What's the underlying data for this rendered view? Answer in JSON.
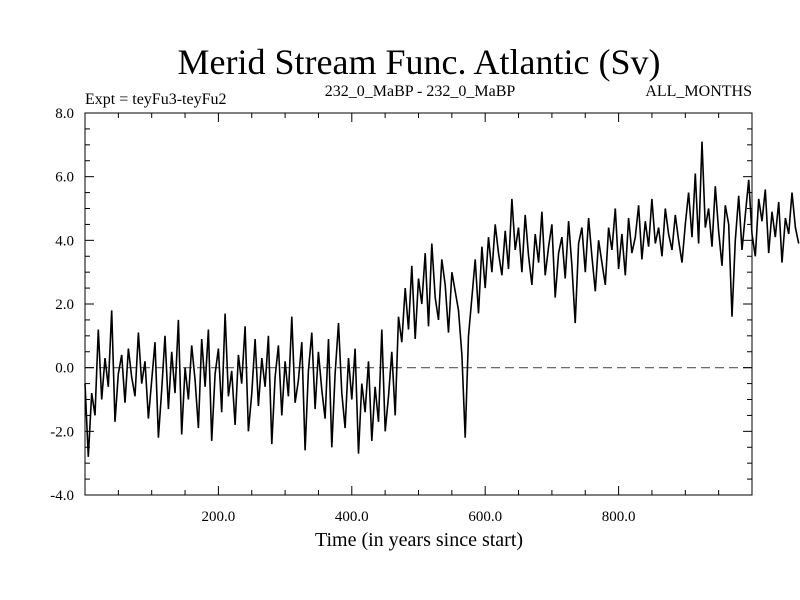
{
  "chart_data": {
    "type": "line",
    "title": "Merid Stream Func. Atlantic (Sv)",
    "subtitle_left": "Expt = teyFu3-teyFu2",
    "subtitle_center": "232_0_MaBP - 232_0_MaBP",
    "subtitle_right": "ALL_MONTHS",
    "xlabel": "Time (in years since start)",
    "ylabel": "",
    "xlim": [
      0,
      1000
    ],
    "ylim": [
      -4.0,
      8.0
    ],
    "x_ticks": [
      200,
      400,
      600,
      800
    ],
    "x_tick_labels": [
      "200.0",
      "400.0",
      "600.0",
      "800.0"
    ],
    "y_ticks": [
      -4,
      -2,
      0,
      2,
      4,
      6,
      8
    ],
    "y_tick_labels": [
      "-4.0",
      "-2.0",
      "0.0",
      "2.0",
      "4.0",
      "6.0",
      "8.0"
    ],
    "reference_line": {
      "y": 0,
      "style": "dashed"
    },
    "series": [
      {
        "name": "teyFu3-teyFu2",
        "x_start": 0,
        "x_step": 5,
        "values": [
          -0.5,
          -2.8,
          -0.8,
          -1.5,
          1.2,
          -1.0,
          0.3,
          -0.6,
          1.8,
          -1.7,
          -0.2,
          0.4,
          -1.1,
          0.6,
          -0.3,
          -0.9,
          1.1,
          -0.5,
          0.2,
          -1.6,
          -0.4,
          0.8,
          -2.2,
          -0.7,
          1.0,
          -1.3,
          0.5,
          -0.8,
          1.5,
          -2.1,
          0.0,
          -1.0,
          0.7,
          -0.4,
          -1.9,
          0.9,
          -0.6,
          1.2,
          -2.3,
          -0.2,
          0.6,
          -1.4,
          1.7,
          -0.9,
          -0.1,
          -1.8,
          0.4,
          -0.5,
          1.3,
          -2.0,
          -0.8,
          0.9,
          -1.2,
          0.3,
          -0.6,
          1.0,
          -2.4,
          -0.3,
          0.7,
          -1.5,
          0.2,
          -0.9,
          1.6,
          -1.1,
          -0.4,
          0.8,
          -2.6,
          -0.1,
          1.1,
          -1.3,
          0.5,
          -0.7,
          -1.6,
          0.9,
          -2.5,
          -0.2,
          1.4,
          -0.8,
          -1.9,
          0.3,
          -1.0,
          0.6,
          -2.7,
          -0.5,
          -1.4,
          0.2,
          -2.3,
          -0.6,
          -1.7,
          1.2,
          -2.0,
          -0.9,
          0.5,
          -1.5,
          1.6,
          0.8,
          2.5,
          1.2,
          3.2,
          0.9,
          2.8,
          2.0,
          3.6,
          1.3,
          3.9,
          2.2,
          1.5,
          3.4,
          2.6,
          1.1,
          3.0,
          2.4,
          1.8,
          0.4,
          -2.2,
          1.0,
          2.2,
          3.4,
          1.7,
          3.8,
          2.5,
          4.1,
          3.0,
          4.5,
          3.6,
          2.9,
          4.3,
          3.1,
          5.3,
          3.7,
          4.4,
          3.0,
          4.8,
          3.5,
          2.6,
          4.2,
          3.3,
          4.9,
          2.9,
          3.8,
          4.5,
          2.2,
          3.6,
          4.1,
          2.8,
          4.6,
          3.2,
          1.4,
          3.9,
          4.4,
          3.0,
          4.7,
          3.5,
          2.4,
          4.0,
          3.3,
          2.6,
          4.4,
          3.7,
          5.0,
          3.1,
          4.2,
          2.9,
          4.7,
          3.6,
          4.1,
          5.1,
          3.4,
          4.6,
          3.8,
          5.3,
          3.9,
          4.4,
          3.5,
          5.0,
          4.2,
          3.7,
          4.8,
          4.0,
          3.3,
          4.5,
          5.5,
          4.1,
          6.1,
          3.9,
          7.1,
          4.4,
          5.0,
          3.8,
          5.7,
          4.3,
          3.2,
          5.1,
          4.5,
          1.6,
          4.0,
          5.4,
          3.7,
          4.8,
          5.9,
          4.2,
          3.5,
          5.3,
          4.6,
          5.6,
          3.6,
          4.9,
          4.1,
          5.2,
          3.3,
          4.7,
          4.2,
          5.5,
          4.4,
          3.9
        ]
      }
    ]
  }
}
